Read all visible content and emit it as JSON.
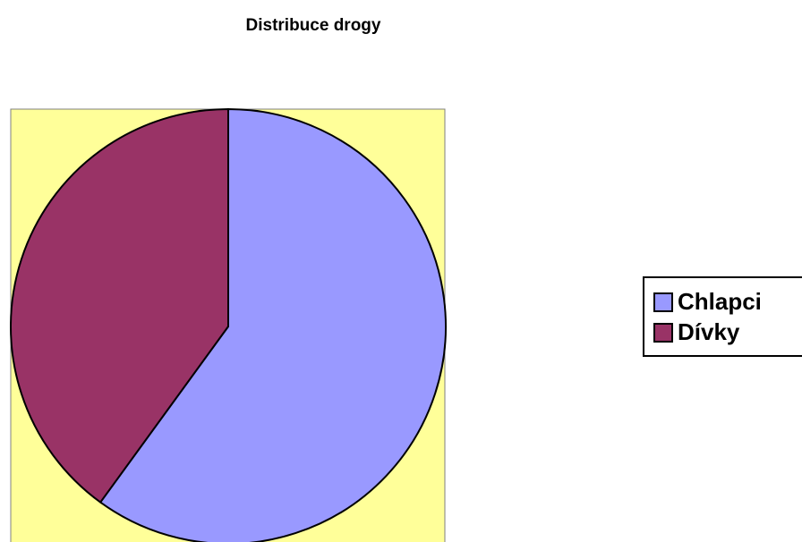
{
  "chart_data": {
    "type": "pie",
    "title": "Distribuce drogy",
    "categories": [
      "Chlapci",
      "Dívky"
    ],
    "values": [
      60,
      40
    ],
    "colors": [
      "#9999ff",
      "#993366"
    ],
    "plot_background": "#ffff99",
    "legend": "right"
  }
}
